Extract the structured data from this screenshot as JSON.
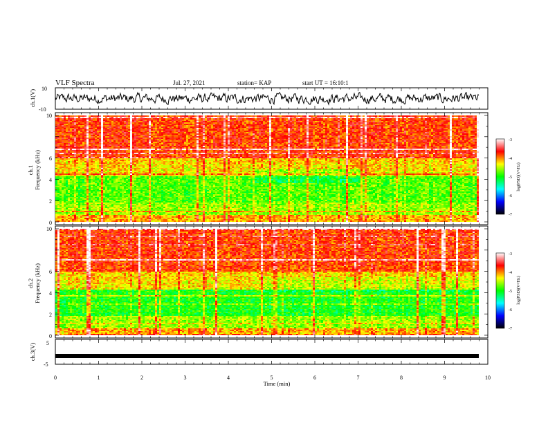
{
  "header": {
    "title": "VLF Spectra",
    "date": "Jul. 27, 2021",
    "station": "station= KAP",
    "start": "start UT = 16:10:1"
  },
  "colors": {
    "trace": "#000000",
    "colormap": [
      "#000000",
      "#0000ff",
      "#00ffff",
      "#00ff00",
      "#ffff00",
      "#ff0000",
      "#ffffff"
    ]
  },
  "chart_data": [
    {
      "id": "ch1-waveform",
      "type": "line",
      "ylabel": "ch.1(V)",
      "ylim": [
        -10,
        10
      ],
      "yticks": [
        "10",
        "-10"
      ],
      "xlim": [
        0,
        10
      ]
    },
    {
      "id": "ch1-spectrogram",
      "type": "heatmap",
      "ylabel_line1": "ch.1",
      "ylabel_line2": "Frequency (kHz)",
      "ylim": [
        0,
        10
      ],
      "yticks": [
        "0",
        "2",
        "4",
        "6",
        "8",
        "10"
      ],
      "xlim": [
        0,
        10
      ],
      "colorbar": {
        "label": "log(PSD)(V²/Hz)",
        "range": [
          -7,
          -3
        ],
        "ticks": [
          "-3",
          "-4",
          "-5",
          "-6",
          "-7"
        ]
      }
    },
    {
      "id": "ch2-spectrogram",
      "type": "heatmap",
      "ylabel_line1": "ch.2",
      "ylabel_line2": "Frequency (kHz)",
      "ylim": [
        0,
        10
      ],
      "yticks": [
        "0",
        "2",
        "4",
        "6",
        "8",
        "10"
      ],
      "xlim": [
        0,
        10
      ],
      "colorbar": {
        "label": "log(PSD)(V²/Hz)",
        "range": [
          -7,
          -3
        ],
        "ticks": [
          "-3",
          "-4",
          "-5",
          "-6",
          "-7"
        ]
      }
    },
    {
      "id": "ch3-waveform",
      "type": "line",
      "ylabel": "ch.3(V)",
      "ylim": [
        -5,
        5
      ],
      "yticks": [
        "5",
        "-5"
      ],
      "xlim": [
        0,
        10
      ],
      "xlabel": "Time (min)",
      "xticks": [
        "0",
        "1",
        "2",
        "3",
        "4",
        "5",
        "6",
        "7",
        "8",
        "9",
        "10"
      ],
      "level": -2
    }
  ]
}
